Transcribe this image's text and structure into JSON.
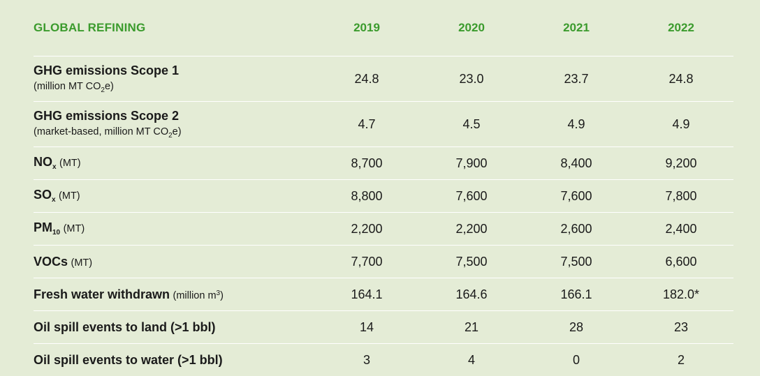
{
  "chart_data": {
    "type": "table",
    "title": "GLOBAL REFINING",
    "columns": [
      "2019",
      "2020",
      "2021",
      "2022"
    ],
    "rows": [
      {
        "label": "GHG emissions Scope 1",
        "sub_pre": "(million MT CO",
        "sub_subscript": "2",
        "sub_post": "e)",
        "values": [
          "24.8",
          "23.0",
          "23.7",
          "24.8"
        ]
      },
      {
        "label": "GHG emissions Scope 2",
        "sub_pre": "(market-based, million MT CO",
        "sub_subscript": "2",
        "sub_post": "e)",
        "values": [
          "4.7",
          "4.5",
          "4.9",
          "4.9"
        ]
      },
      {
        "label": "NO",
        "subscript": "x",
        "unit": "(MT)",
        "values": [
          "8,700",
          "7,900",
          "8,400",
          "9,200"
        ]
      },
      {
        "label": "SO",
        "subscript": "x",
        "unit": "(MT)",
        "values": [
          "8,800",
          "7,600",
          "7,600",
          "7,800"
        ]
      },
      {
        "label": "PM",
        "subscript": "10",
        "unit": "(MT)",
        "values": [
          "2,200",
          "2,200",
          "2,600",
          "2,400"
        ]
      },
      {
        "label": "VOCs",
        "unit": "(MT)",
        "values": [
          "7,700",
          "7,500",
          "7,500",
          "6,600"
        ]
      },
      {
        "label": "Fresh water withdrawn",
        "unit_pre": "(million m",
        "unit_sup": "3",
        "unit_post": ")",
        "values": [
          "164.1",
          "164.6",
          "166.1",
          "182.0*"
        ]
      },
      {
        "label": "Oil spill events to land (>1 bbl)",
        "values": [
          "14",
          "21",
          "28",
          "23"
        ]
      },
      {
        "label": "Oil spill events to water (>1 bbl)",
        "values": [
          "3",
          "4",
          "0",
          "2"
        ]
      }
    ]
  },
  "colors": {
    "background": "#e4ecd6",
    "header_text": "#3b9b2d",
    "divider": "#ffffff"
  }
}
